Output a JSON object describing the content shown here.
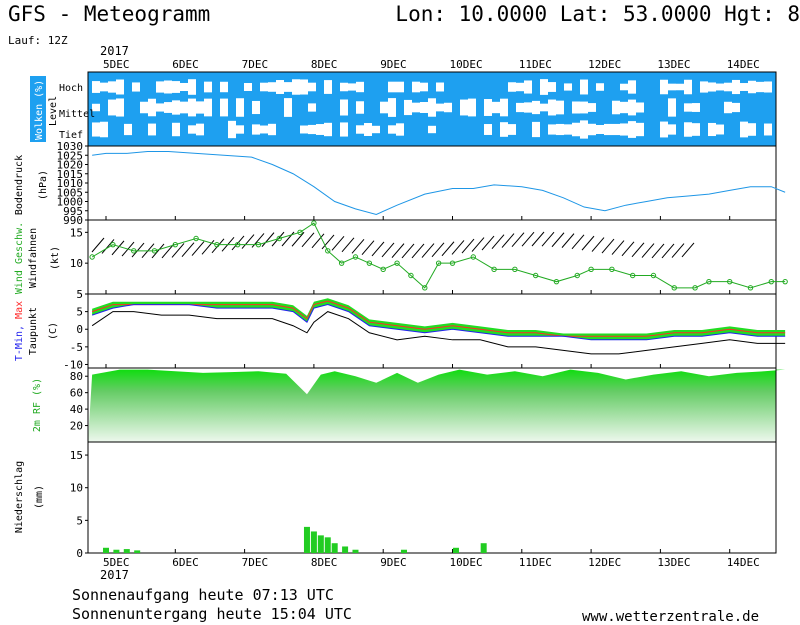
{
  "header": {
    "title": "GFS - Meteogramm",
    "location": "Lon: 10.0000 Lat: 53.0000 Hgt: 8",
    "run": "Lauf: 12Z",
    "year": "2017"
  },
  "footer": {
    "sunrise": "Sonnenaufgang heute 07:13 UTC",
    "sunset": "Sonnenuntergang heute 15:04 UTC",
    "site": "www.wetterzentrale.de"
  },
  "colors": {
    "cloud_bg": "#1ea0f0",
    "pressure": "#1e96e6",
    "wind": "#22aa22",
    "tmax": "#ff2a2a",
    "tmin": "#2222ee",
    "dew": "#000000",
    "rh_fill": "#11dd11",
    "precip": "#22cc22"
  },
  "chart_data": [
    {
      "type": "heatmap",
      "panel": "clouds",
      "ylabel": "Wolken (%)",
      "ylabel2": "Level",
      "levels": [
        "Hoch",
        "Mittel",
        "Tief"
      ],
      "x": [
        "5DEC",
        "6DEC",
        "7DEC",
        "8DEC",
        "9DEC",
        "10DEC",
        "11DEC",
        "12DEC",
        "13DEC",
        "14DEC"
      ]
    },
    {
      "type": "line",
      "panel": "pressure",
      "ylabel": "Bodendruck",
      "ylabel2": "(hPa)",
      "ylim": [
        990,
        1030
      ],
      "yticks": [
        990,
        995,
        1000,
        1005,
        1010,
        1015,
        1020,
        1025,
        1030
      ],
      "x_days": [
        -0.2,
        0.0,
        0.3,
        0.6,
        0.9,
        1.3,
        1.7,
        2.1,
        2.4,
        2.7,
        3.0,
        3.3,
        3.6,
        3.9,
        4.2,
        4.6,
        5.0,
        5.3,
        5.6,
        6.0,
        6.3,
        6.6,
        6.9,
        7.2,
        7.5,
        7.8,
        8.1,
        8.4,
        8.7,
        9.0,
        9.3,
        9.6,
        9.8
      ],
      "values": [
        1025,
        1026,
        1026,
        1027,
        1027,
        1026,
        1025,
        1024,
        1020,
        1015,
        1008,
        1000,
        996,
        993,
        998,
        1004,
        1007,
        1007,
        1009,
        1008,
        1006,
        1002,
        997,
        995,
        998,
        1000,
        1002,
        1003,
        1004,
        1006,
        1008,
        1008,
        1005
      ]
    },
    {
      "type": "line",
      "panel": "wind",
      "ylabel": "Wind Geschw.",
      "ylabel2": "Windfahnen",
      "ylabel3": "(kt)",
      "ylim": [
        5,
        17
      ],
      "yticks": [
        5,
        10,
        15
      ],
      "x_days": [
        -0.2,
        0.1,
        0.4,
        0.7,
        1.0,
        1.3,
        1.6,
        1.9,
        2.2,
        2.5,
        2.8,
        3.0,
        3.2,
        3.4,
        3.6,
        3.8,
        4.0,
        4.2,
        4.4,
        4.6,
        4.8,
        5.0,
        5.3,
        5.6,
        5.9,
        6.2,
        6.5,
        6.8,
        7.0,
        7.3,
        7.6,
        7.9,
        8.2,
        8.5,
        8.7,
        9.0,
        9.3,
        9.6,
        9.8
      ],
      "values": [
        11,
        13,
        12,
        12,
        13,
        14,
        13,
        13,
        13,
        14,
        15,
        16.5,
        12,
        10,
        11,
        10,
        9,
        10,
        8,
        6,
        10,
        10,
        11,
        9,
        9,
        8,
        7,
        8,
        9,
        9,
        8,
        8,
        6,
        6,
        7,
        7,
        6,
        7,
        7
      ]
    },
    {
      "type": "line",
      "panel": "temperature",
      "ylabel": "T-Min, Max",
      "ylabel2": "Taupunkt",
      "ylabel3": "(C)",
      "ylim": [
        -11,
        10
      ],
      "yticks": [
        -10,
        -5,
        0,
        5
      ],
      "x_days": [
        -0.2,
        0.1,
        0.4,
        0.8,
        1.2,
        1.6,
        2.0,
        2.4,
        2.7,
        2.9,
        3.0,
        3.2,
        3.5,
        3.8,
        4.2,
        4.6,
        5.0,
        5.4,
        5.8,
        6.2,
        6.6,
        7.0,
        7.4,
        7.8,
        8.2,
        8.6,
        9.0,
        9.4,
        9.8
      ],
      "series": [
        {
          "name": "T-Max",
          "values": [
            5,
            7,
            7,
            7,
            7,
            7,
            7,
            7,
            6,
            3,
            7,
            8,
            6,
            2,
            1,
            0,
            1,
            0,
            -1,
            -1,
            -2,
            -2,
            -2,
            -2,
            -1,
            -1,
            0,
            -1,
            -1
          ]
        },
        {
          "name": "T-Min",
          "values": [
            4,
            6,
            7,
            7,
            7,
            6,
            6,
            6,
            5,
            2,
            6,
            7,
            5,
            1,
            0,
            -1,
            0,
            -1,
            -2,
            -2,
            -2,
            -3,
            -3,
            -3,
            -2,
            -2,
            -1,
            -2,
            -2
          ]
        },
        {
          "name": "Taupunkt",
          "values": [
            1,
            5,
            5,
            4,
            4,
            3,
            3,
            3,
            1,
            -1,
            2,
            5,
            3,
            -1,
            -3,
            -2,
            -3,
            -3,
            -5,
            -5,
            -6,
            -7,
            -7,
            -6,
            -5,
            -4,
            -3,
            -4,
            -4
          ]
        }
      ]
    },
    {
      "type": "area",
      "panel": "humidity",
      "ylabel": "2m RF (%)",
      "ylim": [
        0,
        90
      ],
      "yticks": [
        20,
        40,
        60,
        80
      ],
      "x_days": [
        -0.2,
        0.2,
        0.6,
        1.0,
        1.4,
        1.8,
        2.2,
        2.6,
        2.9,
        3.1,
        3.3,
        3.6,
        3.9,
        4.2,
        4.5,
        4.8,
        5.1,
        5.5,
        5.9,
        6.3,
        6.7,
        7.1,
        7.5,
        7.9,
        8.3,
        8.7,
        9.1,
        9.5,
        9.8
      ],
      "values": [
        82,
        88,
        88,
        86,
        84,
        85,
        86,
        83,
        58,
        82,
        86,
        80,
        72,
        84,
        72,
        82,
        88,
        82,
        86,
        80,
        88,
        84,
        76,
        82,
        86,
        80,
        84,
        86,
        88
      ]
    },
    {
      "type": "bar",
      "panel": "precipitation",
      "ylabel": "Niederschlag",
      "ylabel2": "(mm)",
      "ylim": [
        0,
        17
      ],
      "yticks": [
        0,
        5,
        10,
        15
      ],
      "x_days": [
        0.0,
        0.15,
        0.3,
        0.45,
        2.9,
        3.0,
        3.1,
        3.2,
        3.3,
        3.45,
        3.6,
        4.3,
        5.05,
        5.45
      ],
      "values": [
        0.8,
        0.5,
        0.6,
        0.4,
        4.0,
        3.3,
        2.7,
        2.4,
        1.5,
        1.0,
        0.5,
        0.5,
        0.8,
        1.5
      ]
    }
  ]
}
